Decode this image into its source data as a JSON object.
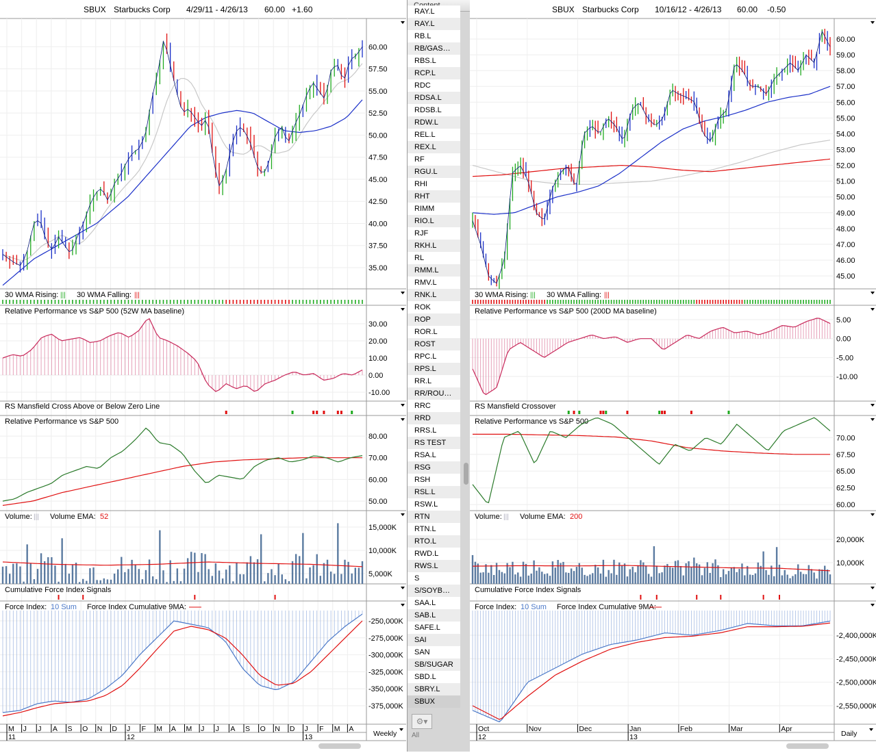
{
  "chart_data": [
    {
      "type": "stock-chart",
      "side": "left",
      "symbol": "SBUX",
      "name": "Starbucks Corp",
      "range": "4/29/11 - 4/26/13",
      "last": "60.00",
      "change": "+1.60",
      "period": "Weekly",
      "price": {
        "ylim": [
          32.6,
          63.2
        ],
        "ticks": [
          "60.00",
          "57.50",
          "55.00",
          "52.50",
          "50.00",
          "47.50",
          "45.00",
          "42.50",
          "40.00",
          "37.50",
          "35.00"
        ],
        "tick_values": [
          60,
          57.5,
          55,
          52.5,
          50,
          47.5,
          45,
          42.5,
          40,
          37.5,
          35
        ],
        "bars": 104,
        "close": [
          36.5,
          36,
          35.5,
          35.2,
          37,
          40,
          40.5,
          38,
          37,
          38.5,
          37.5,
          36.5,
          38.5,
          40,
          42,
          43.5,
          44,
          42.5,
          44.5,
          45.5,
          47,
          48,
          48.5,
          50,
          54,
          57,
          61,
          58,
          55,
          52.5,
          53,
          52,
          51,
          52,
          47,
          44,
          46,
          49,
          51,
          50.5,
          49,
          46.5,
          45.5,
          47,
          50,
          51,
          49,
          51,
          52.5,
          54.5,
          56,
          55,
          54,
          57.5,
          58,
          56,
          58.5,
          59,
          60
        ],
        "ma30": [
          33,
          34.5,
          36,
          37,
          38,
          39,
          40,
          41.5,
          43,
          45,
          47,
          49,
          51,
          52,
          52.5,
          52.8,
          52.5,
          51.5,
          50.5,
          50.3,
          50.5,
          51,
          52,
          54
        ]
      },
      "wma": {
        "rising_label": "30 WMA Rising:",
        "falling_label": "30 WMA Falling:",
        "runs": [
          {
            "s": "up",
            "n": 64
          },
          {
            "s": "down",
            "n": 19
          },
          {
            "s": "up",
            "n": 21
          }
        ]
      },
      "relperf": {
        "label": "Relative Performance vs S&P 500 (52W MA baseline)",
        "ylim": [
          -15.2,
          40.8
        ],
        "ticks": [
          "30.00",
          "20.00",
          "10.00",
          "0.00",
          "-10.00"
        ],
        "tick_values": [
          30,
          20,
          10,
          0,
          -10
        ],
        "values": [
          10,
          12,
          11,
          15,
          22,
          24,
          20,
          21,
          22,
          19,
          20,
          23,
          25,
          22,
          26,
          34,
          22,
          20,
          17,
          13,
          8,
          -5,
          -10,
          -5,
          -8,
          -6,
          -10,
          -5,
          -3,
          0,
          2,
          0,
          1,
          -3,
          -2,
          1,
          0,
          3
        ]
      },
      "mansfield": {
        "label": "RS Mansfield Cross Above or Below Zero Line",
        "events": [
          {
            "i": 64,
            "t": "down"
          },
          {
            "i": 83,
            "t": "up"
          },
          {
            "i": 89,
            "t": "down"
          },
          {
            "i": 90,
            "t": "down"
          },
          {
            "i": 92,
            "t": "down"
          },
          {
            "i": 96,
            "t": "down"
          },
          {
            "i": 97,
            "t": "down"
          },
          {
            "i": 100,
            "t": "up"
          }
        ]
      },
      "rpsp": {
        "label": "Relative Performance vs S&P 500",
        "ylim": [
          45.6,
          89.5
        ],
        "ticks": [
          "80.00",
          "70.00",
          "60.00",
          "50.00"
        ],
        "tick_values": [
          80,
          70,
          60,
          50
        ],
        "green": [
          50,
          51,
          54,
          56,
          58,
          62,
          64,
          66,
          65,
          70,
          73,
          78,
          84,
          77,
          76,
          72,
          64,
          58,
          62,
          61,
          60,
          66,
          69,
          70,
          68,
          69,
          71,
          70,
          68,
          70,
          71
        ],
        "red": [
          48,
          50,
          54,
          57,
          60,
          63,
          66,
          68,
          69,
          69.5,
          70,
          70,
          70
        ]
      },
      "volume": {
        "label": "Volume:",
        "ema_label": "Volume EMA:",
        "ema_period": "52",
        "ylim": [
          2794,
          18529
        ],
        "ticks": [
          "15,000K",
          "10,000K",
          "5,000K"
        ],
        "tick_values": [
          15000,
          10000,
          5000
        ],
        "ema": [
          7500,
          7000,
          6800,
          7000,
          7500,
          7200,
          7000,
          6500
        ]
      },
      "cfi": {
        "label": "Cumulative Force Index Signals",
        "events": [
          {
            "i": 16,
            "t": "down"
          },
          {
            "i": 23,
            "t": "down"
          },
          {
            "i": 55,
            "t": "down"
          },
          {
            "i": 78,
            "t": "down"
          }
        ]
      },
      "force": {
        "label": "Force Index:",
        "sum_label": "10 Sum",
        "ma_label": "Force Index Cumulative 9MA:",
        "ylim": [
          -402218,
          -220766
        ],
        "ticks": [
          "-250,000K",
          "-275,000K",
          "-300,000K",
          "-325,000K",
          "-350,000K",
          "-375,000K"
        ],
        "tick_values": [
          -250000,
          -275000,
          -300000,
          -325000,
          -350000,
          -375000
        ],
        "values": [
          -385000,
          -382000,
          -372000,
          -368000,
          -370000,
          -365000,
          -350000,
          -330000,
          -300000,
          -275000,
          -250000,
          -255000,
          -260000,
          -280000,
          -320000,
          -345000,
          -352000,
          -340000,
          -310000,
          -280000,
          -258000,
          -240000
        ],
        "ma": [
          -390000,
          -385000,
          -378000,
          -372000,
          -370000,
          -368000,
          -360000,
          -345000,
          -320000,
          -292000,
          -265000,
          -258000,
          -263000,
          -275000,
          -300000,
          -330000,
          -345000,
          -342000,
          -325000,
          -300000,
          -275000,
          -250000
        ]
      },
      "months": [
        "M",
        "J",
        "J",
        "A",
        "S",
        "O",
        "N",
        "D",
        "J",
        "F",
        "M",
        "A",
        "M",
        "J",
        "J",
        "A",
        "S",
        "O",
        "N",
        "D",
        "J",
        "F",
        "M",
        "A"
      ],
      "years": [
        {
          "label": "11",
          "m": 0
        },
        {
          "label": "12",
          "m": 8
        },
        {
          "label": "13",
          "m": 20
        }
      ]
    },
    {
      "type": "stock-chart",
      "side": "right",
      "symbol": "SBUX",
      "name": "Starbucks Corp",
      "range": "10/16/12 - 4/26/13",
      "last": "60.00",
      "change": "-0.50",
      "period": "Daily",
      "price": {
        "ylim": [
          44.18,
          61.3
        ],
        "ticks": [
          "60.00",
          "59.00",
          "58.00",
          "57.00",
          "56.00",
          "55.00",
          "54.00",
          "53.00",
          "52.00",
          "51.00",
          "50.00",
          "49.00",
          "48.00",
          "47.00",
          "46.00",
          "45.00"
        ],
        "tick_values": [
          60,
          59,
          58,
          57,
          56,
          55,
          54,
          53,
          52,
          51,
          50,
          49,
          48,
          47,
          46,
          45
        ],
        "bars": 135,
        "close": [
          48.5,
          47,
          45,
          44.5,
          46,
          51.5,
          52,
          51,
          49,
          48.5,
          50.5,
          51.5,
          52,
          50.5,
          54,
          54.5,
          54,
          55,
          54.5,
          53.5,
          55.5,
          56,
          55,
          54.5,
          55,
          56.8,
          56.5,
          56.3,
          56,
          54,
          53.5,
          55,
          55.5,
          58.5,
          58,
          57,
          57,
          56.5,
          57.5,
          58,
          58.5,
          58,
          59,
          58.5,
          60.5,
          59.5
        ],
        "ma30": [
          49,
          48.9,
          49,
          49.5,
          50,
          50.3,
          50.7,
          51.5,
          52.5,
          53.5,
          54.3,
          54.8,
          55.1,
          55.5,
          56,
          56.3,
          56.5,
          57
        ],
        "ma_red": [
          51.3,
          51.4,
          51.6,
          51.8,
          51.9,
          52,
          51.9,
          51.7,
          51.6,
          51.8,
          52,
          52.2,
          52.4
        ],
        "ma_gray": [
          52,
          51.5,
          51,
          50.8,
          50.8,
          50.9,
          51,
          51.3,
          51.7,
          52.2,
          52.8,
          53.3,
          53.6
        ]
      },
      "wma": {
        "rising_label": "30 WMA Rising:",
        "falling_label": "30 WMA Falling:",
        "runs": [
          {
            "s": "down",
            "n": 28
          },
          {
            "s": "up",
            "n": 56
          },
          {
            "s": "down",
            "n": 18
          },
          {
            "s": "up",
            "n": 33
          }
        ]
      },
      "relperf": {
        "label": "Relative Performance vs S&P 500 (200D MA baseline)",
        "ylim": [
          -16.5,
          8.8
        ],
        "ticks": [
          "5.00",
          "0.00",
          "-5.00",
          "-10.00"
        ],
        "tick_values": [
          5,
          0,
          -5,
          -10
        ],
        "values": [
          -8,
          -15,
          -13,
          -3,
          -1,
          -3,
          -5,
          -3,
          -1,
          0,
          1,
          0,
          0.5,
          -1,
          0,
          0,
          -3,
          -1,
          1,
          0,
          2,
          3,
          1.5,
          2,
          1,
          2,
          3.5,
          3,
          4.5,
          5.5,
          4
        ]
      },
      "mansfield": {
        "label": "RS Mansfield Crossover",
        "events": [
          {
            "i": 36,
            "t": "up"
          },
          {
            "i": 38,
            "t": "down"
          },
          {
            "i": 40,
            "t": "up"
          },
          {
            "i": 48,
            "t": "down"
          },
          {
            "i": 49,
            "t": "down"
          },
          {
            "i": 50,
            "t": "up"
          },
          {
            "i": 58,
            "t": "down"
          },
          {
            "i": 70,
            "t": "up"
          },
          {
            "i": 71,
            "t": "down"
          },
          {
            "i": 72,
            "t": "down"
          },
          {
            "i": 82,
            "t": "down"
          },
          {
            "i": 96,
            "t": "up"
          }
        ]
      },
      "rpsp": {
        "label": "Relative Performance vs S&P 500",
        "ylim": [
          59.1,
          73.3
        ],
        "ticks": [
          "70.00",
          "67.50",
          "65.00",
          "62.50",
          "60.00"
        ],
        "tick_values": [
          70,
          67.5,
          65,
          62.5,
          60
        ],
        "green": [
          63,
          60,
          70,
          71,
          66,
          71,
          70,
          72,
          73,
          72,
          70,
          68,
          66,
          69,
          68,
          70,
          69,
          72,
          70,
          68,
          71,
          72,
          73,
          71
        ],
        "red": [
          70.5,
          70.5,
          70.4,
          70.3,
          70.1,
          69.5,
          68.5,
          68,
          67.7,
          67.5,
          67.5
        ]
      },
      "volume": {
        "label": "Volume:",
        "ema_label": "Volume EMA:",
        "ema_period": "200",
        "ylim": [
          882,
          32353
        ],
        "ticks": [
          "20,000K",
          "10,000K"
        ],
        "tick_values": [
          20000,
          10000
        ],
        "ema": [
          8500,
          8700,
          8600,
          8800,
          8300,
          7800,
          7600,
          6500
        ]
      },
      "cfi": {
        "label": "Cumulative Force Index Signals",
        "events": [
          {
            "i": 63,
            "t": "down"
          },
          {
            "i": 69,
            "t": "down"
          },
          {
            "i": 84,
            "t": "down"
          },
          {
            "i": 93,
            "t": "down"
          },
          {
            "i": 109,
            "t": "down"
          },
          {
            "i": 115,
            "t": "down"
          }
        ]
      },
      "force": {
        "label": "Force Index:",
        "sum_label": "10 Sum",
        "ma_label": "Force Index Cumulative 9MA:",
        "ylim": [
          -2589300,
          -2327220
        ],
        "ticks": [
          "-2,400,000K",
          "-2,450,000K",
          "-2,500,000K",
          "-2,550,000K"
        ],
        "tick_values": [
          -2400000,
          -2450000,
          -2500000,
          -2550000
        ],
        "values": [
          -2560000,
          -2585000,
          -2500000,
          -2470000,
          -2440000,
          -2420000,
          -2410000,
          -2395000,
          -2400000,
          -2390000,
          -2375000,
          -2380000,
          -2380000,
          -2370000
        ],
        "ma": [
          -2550000,
          -2580000,
          -2530000,
          -2485000,
          -2455000,
          -2430000,
          -2415000,
          -2405000,
          -2402000,
          -2395000,
          -2382000,
          -2382000,
          -2381000,
          -2374000
        ]
      },
      "months": [
        "Oct",
        "Nov",
        "Dec",
        "Jan",
        "Feb",
        "Mar",
        "Apr"
      ],
      "years": [
        {
          "label": "12",
          "m": 0
        },
        {
          "label": "13",
          "m": 3
        }
      ]
    }
  ],
  "list": {
    "header": "Content",
    "items": [
      "RAY.L",
      "RAY.L",
      "RB.L",
      "RB/GAS…",
      "RBS.L",
      "RCP.L",
      "RDC",
      "RDSA.L",
      "RDSB.L",
      "RDW.L",
      "REL.L",
      "REX.L",
      "RF",
      "RGU.L",
      "RHI",
      "RHT",
      "RIMM",
      "RIO.L",
      "RJF",
      "RKH.L",
      "RL",
      "RMM.L",
      "RMV.L",
      "RNK.L",
      "ROK",
      "ROP",
      "ROR.L",
      "ROST",
      "RPC.L",
      "RPS.L",
      "RR.L",
      "RR/ROU…",
      "RRC",
      "RRD",
      "RRS.L",
      "RS TEST",
      "RSA.L",
      "RSG",
      "RSH",
      "RSL.L",
      "RSW.L",
      "RTN",
      "RTN.L",
      "RTO.L",
      "RWD.L",
      "RWS.L",
      "S",
      "S/SOYB…",
      "SAA.L",
      "SAB.L",
      "SAFE.L",
      "SAI",
      "SAN",
      "SB/SUGAR",
      "SBD.L",
      "SBRY.L",
      "SBUX"
    ],
    "selected": "SBUX",
    "footer": "All",
    "gear": "⚙▾"
  },
  "colors": {
    "up": "#1faa1f",
    "down": "#e01010",
    "ma": "#1a2fc8",
    "gray": "#c8c8c8",
    "rel": "#c8285a",
    "rpgreen": "#2a7a2a",
    "vol": "#5a7aa0",
    "force": "#4a78c8"
  }
}
